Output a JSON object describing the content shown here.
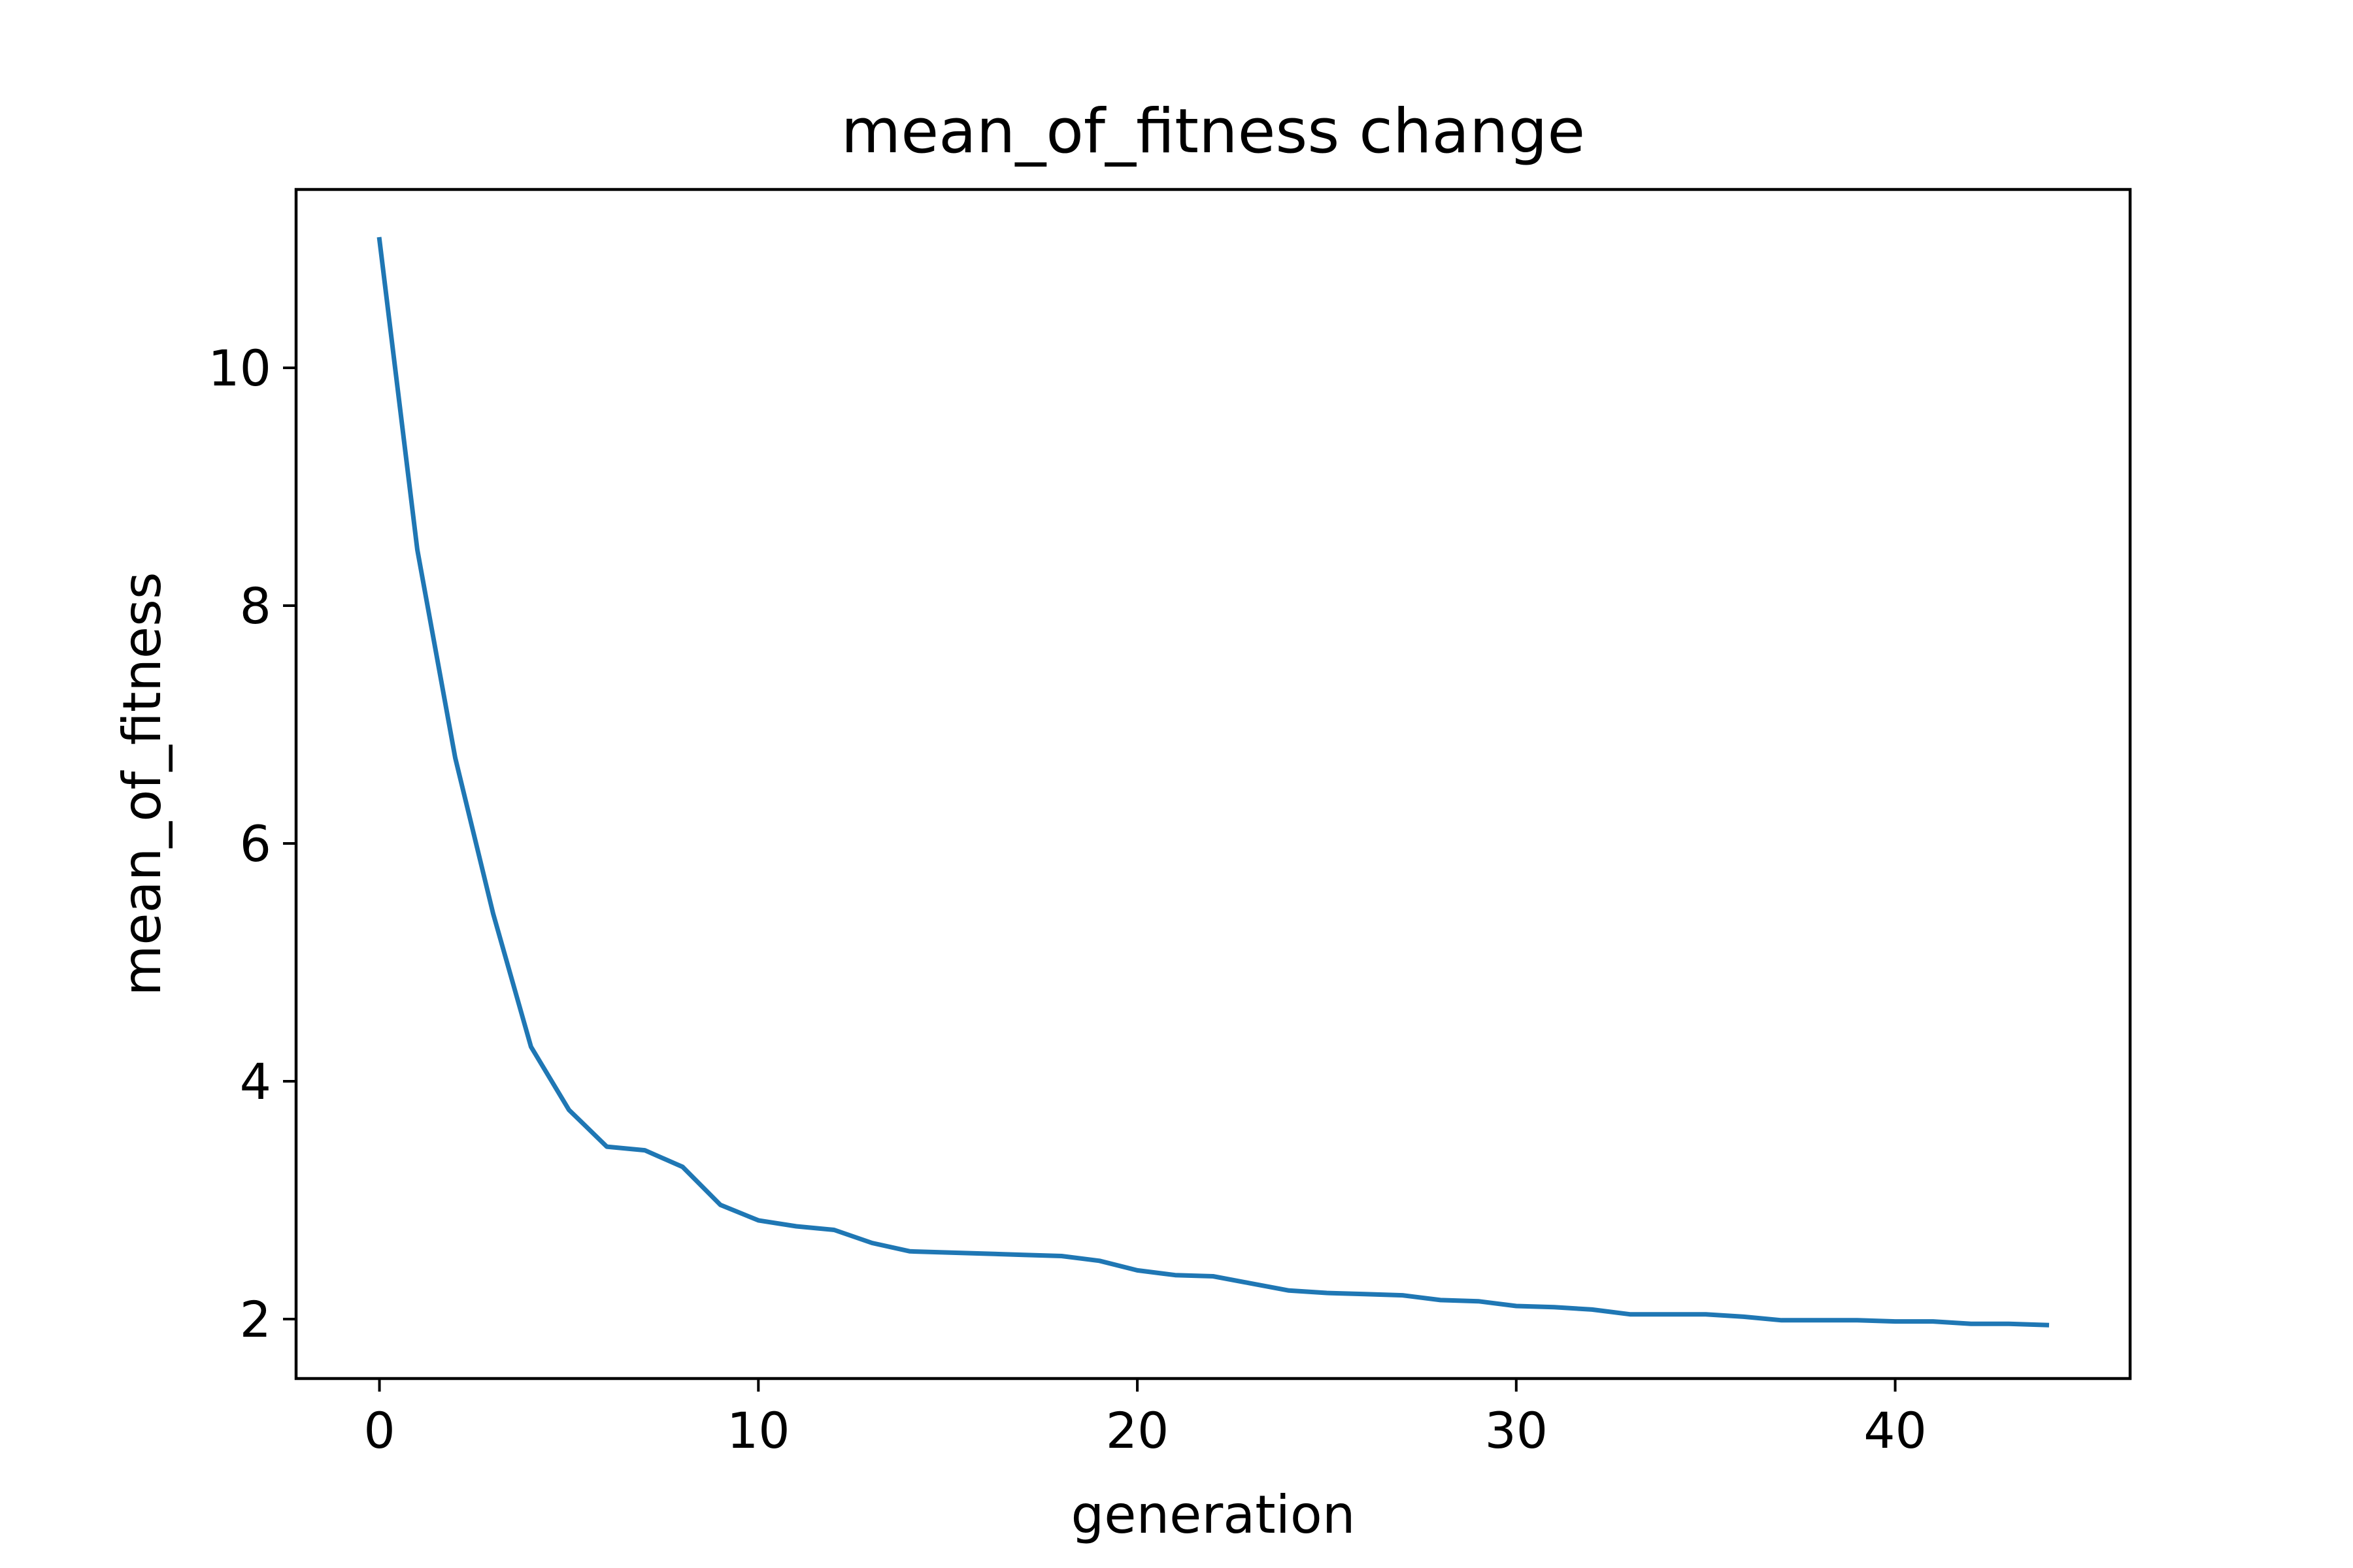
{
  "chart_data": {
    "type": "line",
    "title": "mean_of_fitness change",
    "xlabel": "generation",
    "ylabel": "mean_of_fitness",
    "xlim": [
      -2.2,
      46.2
    ],
    "ylim": [
      1.5,
      11.5
    ],
    "xticks": [
      0,
      10,
      20,
      30,
      40
    ],
    "yticks": [
      2,
      4,
      6,
      8,
      10
    ],
    "grid": false,
    "line_color": "#1f77b4",
    "series": [
      {
        "x": [
          0,
          1,
          2,
          3,
          4,
          5,
          6,
          7,
          8,
          9,
          10,
          11,
          12,
          13,
          14,
          15,
          16,
          17,
          18,
          19,
          20,
          21,
          22,
          23,
          24,
          25,
          26,
          27,
          28,
          29,
          30,
          31,
          32,
          33,
          34,
          35,
          36,
          37,
          38,
          39,
          40,
          41,
          42,
          43,
          44
        ],
        "values": [
          11.08,
          8.47,
          6.72,
          5.41,
          4.29,
          3.76,
          3.45,
          3.42,
          3.28,
          2.96,
          2.83,
          2.78,
          2.75,
          2.64,
          2.57,
          2.56,
          2.55,
          2.54,
          2.53,
          2.49,
          2.41,
          2.37,
          2.36,
          2.3,
          2.24,
          2.22,
          2.21,
          2.2,
          2.16,
          2.15,
          2.11,
          2.1,
          2.08,
          2.04,
          2.04,
          2.04,
          2.02,
          1.99,
          1.99,
          1.99,
          1.98,
          1.98,
          1.96,
          1.96,
          1.95
        ]
      }
    ]
  }
}
